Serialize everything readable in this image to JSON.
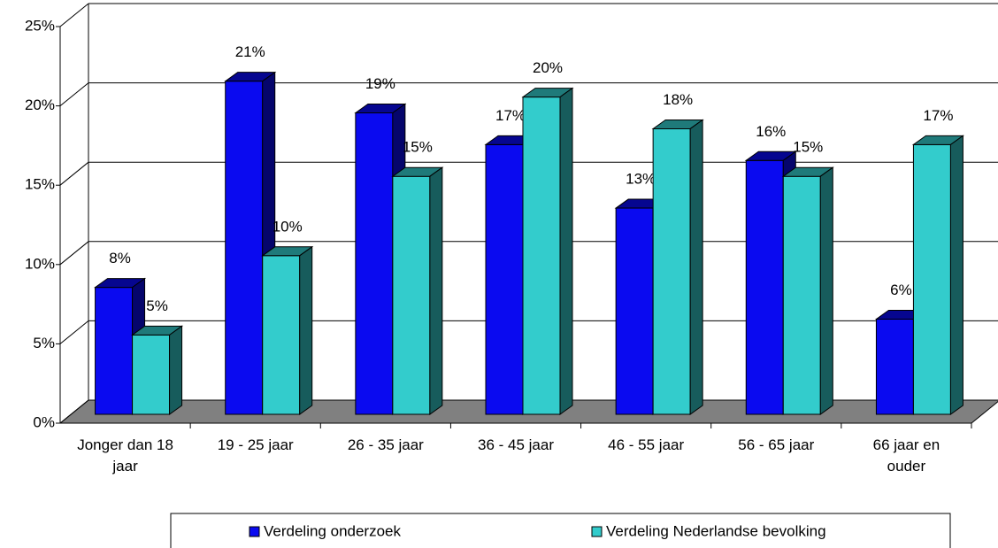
{
  "chart_data": {
    "type": "bar3d",
    "categories": [
      "Jonger dan 18 jaar",
      "19 - 25 jaar",
      "26 - 35 jaar",
      "36 - 45 jaar",
      "46 - 55 jaar",
      "56 - 65 jaar",
      "66 jaar en ouder"
    ],
    "series": [
      {
        "name": "Verdeling onderzoek",
        "color": "#0a0af0",
        "values": [
          8,
          21,
          19,
          17,
          13,
          16,
          6
        ],
        "value_labels": [
          "8%",
          "21%",
          "19%",
          "17%",
          "13%",
          "16%",
          "6%"
        ]
      },
      {
        "name": "Verdeling Nederlandse bevolking",
        "color": "#33cccc",
        "values": [
          5,
          10,
          15,
          20,
          18,
          15,
          17
        ],
        "value_labels": [
          "5%",
          "10%",
          "15%",
          "20%",
          "18%",
          "15%",
          "17%"
        ]
      }
    ],
    "ylim": [
      0,
      25
    ],
    "yticks": [
      {
        "value": 0,
        "label": "0%"
      },
      {
        "value": 5,
        "label": "5%"
      },
      {
        "value": 10,
        "label": "10%"
      },
      {
        "value": 15,
        "label": "15%"
      },
      {
        "value": 20,
        "label": "20%"
      },
      {
        "value": 25,
        "label": "25%"
      }
    ],
    "grid": true,
    "legend": "bottom"
  }
}
